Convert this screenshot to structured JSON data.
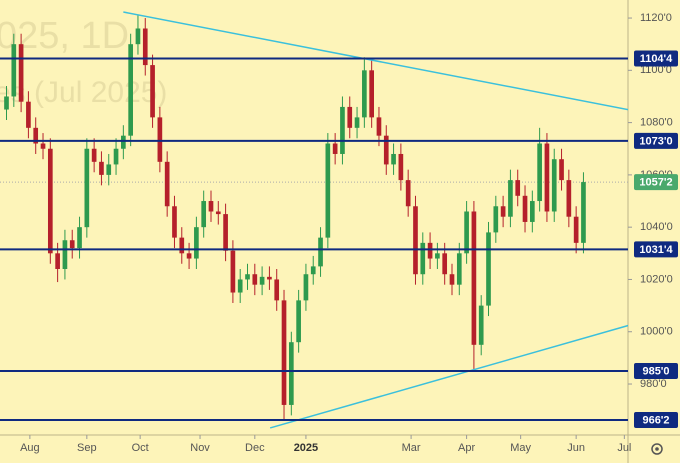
{
  "chart_data": {
    "type": "candlestick",
    "watermark": [
      "025, 1D",
      "es (Jul 2025)"
    ],
    "open": [
      1085,
      1090,
      1110,
      1088,
      1078,
      1072,
      1070,
      1030,
      1024,
      1035,
      1032,
      1040,
      1070,
      1065,
      1060,
      1064,
      1070,
      1075,
      1110,
      1116,
      1102,
      1082,
      1065,
      1048,
      1036,
      1030,
      1028,
      1040,
      1050,
      1046,
      1045,
      1031,
      1015,
      1020,
      1022,
      1018,
      1021,
      1020,
      1012,
      972,
      996,
      1012,
      1022,
      1025,
      1036,
      1072,
      1068,
      1086,
      1078,
      1082,
      1100,
      1082,
      1075,
      1064,
      1068,
      1058,
      1048,
      1022,
      1034,
      1028,
      1030,
      1022,
      1018,
      1030,
      1046,
      995,
      1010,
      1038,
      1048,
      1044,
      1058,
      1052,
      1042,
      1050,
      1072,
      1046,
      1066,
      1058,
      1044,
      1034
    ],
    "high": [
      1094,
      1114,
      1114,
      1092,
      1082,
      1076,
      1074,
      1034,
      1039,
      1039,
      1044,
      1074,
      1074,
      1069,
      1068,
      1074,
      1079,
      1114,
      1121,
      1120,
      1106,
      1086,
      1069,
      1052,
      1040,
      1034,
      1044,
      1054,
      1054,
      1050,
      1049,
      1035,
      1024,
      1026,
      1026,
      1025,
      1025,
      1024,
      1016,
      1000,
      1016,
      1026,
      1029,
      1040,
      1076,
      1076,
      1090,
      1090,
      1086,
      1105,
      1104,
      1086,
      1079,
      1072,
      1072,
      1062,
      1052,
      1038,
      1038,
      1034,
      1034,
      1026,
      1034,
      1050,
      1050,
      1014,
      1042,
      1052,
      1052,
      1062,
      1062,
      1056,
      1054,
      1078,
      1076,
      1070,
      1070,
      1062,
      1048,
      1061
    ],
    "low": [
      1081,
      1086,
      1084,
      1074,
      1068,
      1066,
      1026,
      1019,
      1020,
      1028,
      1028,
      1036,
      1061,
      1056,
      1056,
      1060,
      1066,
      1071,
      1106,
      1098,
      1078,
      1061,
      1044,
      1032,
      1026,
      1024,
      1024,
      1036,
      1042,
      1041,
      1027,
      1011,
      1011,
      1016,
      1014,
      1014,
      1016,
      1008,
      966.25,
      968,
      992,
      1008,
      1018,
      1021,
      1032,
      1064,
      1064,
      1074,
      1074,
      1078,
      1078,
      1071,
      1060,
      1060,
      1054,
      1044,
      1018,
      1018,
      1024,
      1024,
      1018,
      1014,
      1014,
      1026,
      985.5,
      991,
      1006,
      1034,
      1040,
      1040,
      1048,
      1038,
      1038,
      1046,
      1042,
      1042,
      1054,
      1040,
      1030,
      1030
    ],
    "close": [
      1090,
      1110,
      1088,
      1078,
      1072,
      1070,
      1030,
      1024,
      1035,
      1032,
      1040,
      1070,
      1065,
      1060,
      1064,
      1070,
      1075,
      1110,
      1116,
      1102,
      1082,
      1065,
      1048,
      1036,
      1030,
      1028,
      1040,
      1050,
      1046,
      1045,
      1031,
      1015,
      1020,
      1022,
      1018,
      1021,
      1020,
      1012,
      972,
      996,
      1012,
      1022,
      1025,
      1036,
      1072,
      1068,
      1086,
      1078,
      1082,
      1100,
      1082,
      1075,
      1064,
      1068,
      1058,
      1048,
      1022,
      1034,
      1028,
      1030,
      1022,
      1018,
      1030,
      1046,
      995,
      1010,
      1038,
      1048,
      1044,
      1058,
      1052,
      1042,
      1050,
      1072,
      1046,
      1066,
      1058,
      1044,
      1034,
      1057.25
    ],
    "up_color": "#2e9a4e",
    "down_color": "#b5202b",
    "xlim": [
      -0.89,
      85.1
    ],
    "xticks": [
      {
        "value": 3.2,
        "label": "Aug"
      },
      {
        "value": 11,
        "label": "Sep"
      },
      {
        "value": 18.3,
        "label": "Oct"
      },
      {
        "value": 26.5,
        "label": "Nov"
      },
      {
        "value": 34,
        "label": "Dec"
      },
      {
        "value": 41,
        "label": "2025"
      },
      {
        "value": 55.4,
        "label": "Mar"
      },
      {
        "value": 63,
        "label": "Apr"
      },
      {
        "value": 70.4,
        "label": "May"
      },
      {
        "value": 78,
        "label": "Jun"
      },
      {
        "value": 84.6,
        "label": "Jul"
      }
    ],
    "ylim": [
      960.5,
      1126.9
    ],
    "yticks": [
      {
        "value": 1120,
        "label": "1120'0"
      },
      {
        "value": 1100,
        "label": "1100'0"
      },
      {
        "value": 1080,
        "label": "1080'0"
      },
      {
        "value": 1060,
        "label": "1060'0"
      },
      {
        "value": 1040,
        "label": "1040'0"
      },
      {
        "value": 1020,
        "label": "1020'0"
      },
      {
        "value": 1000,
        "label": "1000'0"
      },
      {
        "value": 980,
        "label": "980'0"
      }
    ],
    "levels": [
      {
        "value": 1104.5,
        "label": "1104'4"
      },
      {
        "value": 1073,
        "label": "1073'0"
      },
      {
        "value": 1031.5,
        "label": "1031'4"
      },
      {
        "value": 985,
        "label": "985'0"
      },
      {
        "value": 966.25,
        "label": "966'2"
      }
    ],
    "level_color": "#0f2a80",
    "last_price": {
      "value": 1057.25,
      "label": "1057'2"
    },
    "last_price_color": "#4aa96c",
    "trendlines": [
      {
        "x": [
          16,
          85.4
        ],
        "y": [
          1122.3,
          1084.8
        ]
      },
      {
        "x": [
          36.1,
          85.4
        ],
        "y": [
          963.2,
          1002.6
        ]
      }
    ],
    "trendline_color": "#3bc0dc"
  }
}
